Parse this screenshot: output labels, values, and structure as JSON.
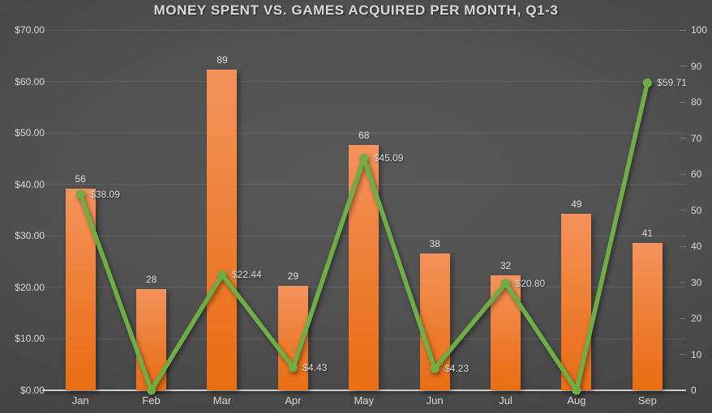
{
  "title": "MONEY SPENT VS. GAMES ACQUIRED PER MONTH, Q1-3",
  "colors": {
    "background_center": "#585858",
    "background_edge": "#333333",
    "bar_gradient_top": "#f4935c",
    "bar_gradient_bottom": "#ea6d13",
    "bar_accent": "#ed7d31",
    "line_green": "#6fae44",
    "label_text": "#d9d9d9",
    "axis_line": "#cfcfcf"
  },
  "chart_data": {
    "type": "combo",
    "title": "MONEY SPENT VS. GAMES ACQUIRED PER MONTH, Q1-3",
    "categories": [
      "Jan",
      "Feb",
      "Mar",
      "Apr",
      "May",
      "Jun",
      "Jul",
      "Aug",
      "Sep"
    ],
    "series": [
      {
        "name": "Games acquired",
        "type": "bar",
        "axis": "right",
        "color": "#ed7d31",
        "values": [
          56,
          28,
          89,
          29,
          68,
          38,
          32,
          49,
          41
        ],
        "data_labels": [
          "56",
          "28",
          "89",
          "29",
          "68",
          "38",
          "32",
          "49",
          "41"
        ]
      },
      {
        "name": "Money spent",
        "type": "line",
        "axis": "left",
        "color": "#6fae44",
        "values": [
          38.09,
          0,
          22.44,
          4.43,
          45.09,
          4.23,
          20.8,
          0,
          59.71
        ],
        "data_labels": [
          "$38.09",
          "",
          "$22.44",
          "$4.43",
          "$45.09",
          "$4.23",
          "$20.80",
          "",
          "$59.71"
        ]
      }
    ],
    "left_axis": {
      "min": 0,
      "max": 70,
      "tick_step": 10,
      "tick_labels": [
        "$70.00",
        "$60.00",
        "$50.00",
        "$40.00",
        "$30.00",
        "$20.00",
        "$10.00",
        "$0.00"
      ]
    },
    "right_axis": {
      "min": 0,
      "max": 100,
      "tick_step": 10,
      "tick_labels": [
        "100",
        "90",
        "80",
        "70",
        "60",
        "50",
        "40",
        "30",
        "20",
        "10",
        "0"
      ]
    },
    "grid": "horizontal",
    "legend": "none"
  }
}
